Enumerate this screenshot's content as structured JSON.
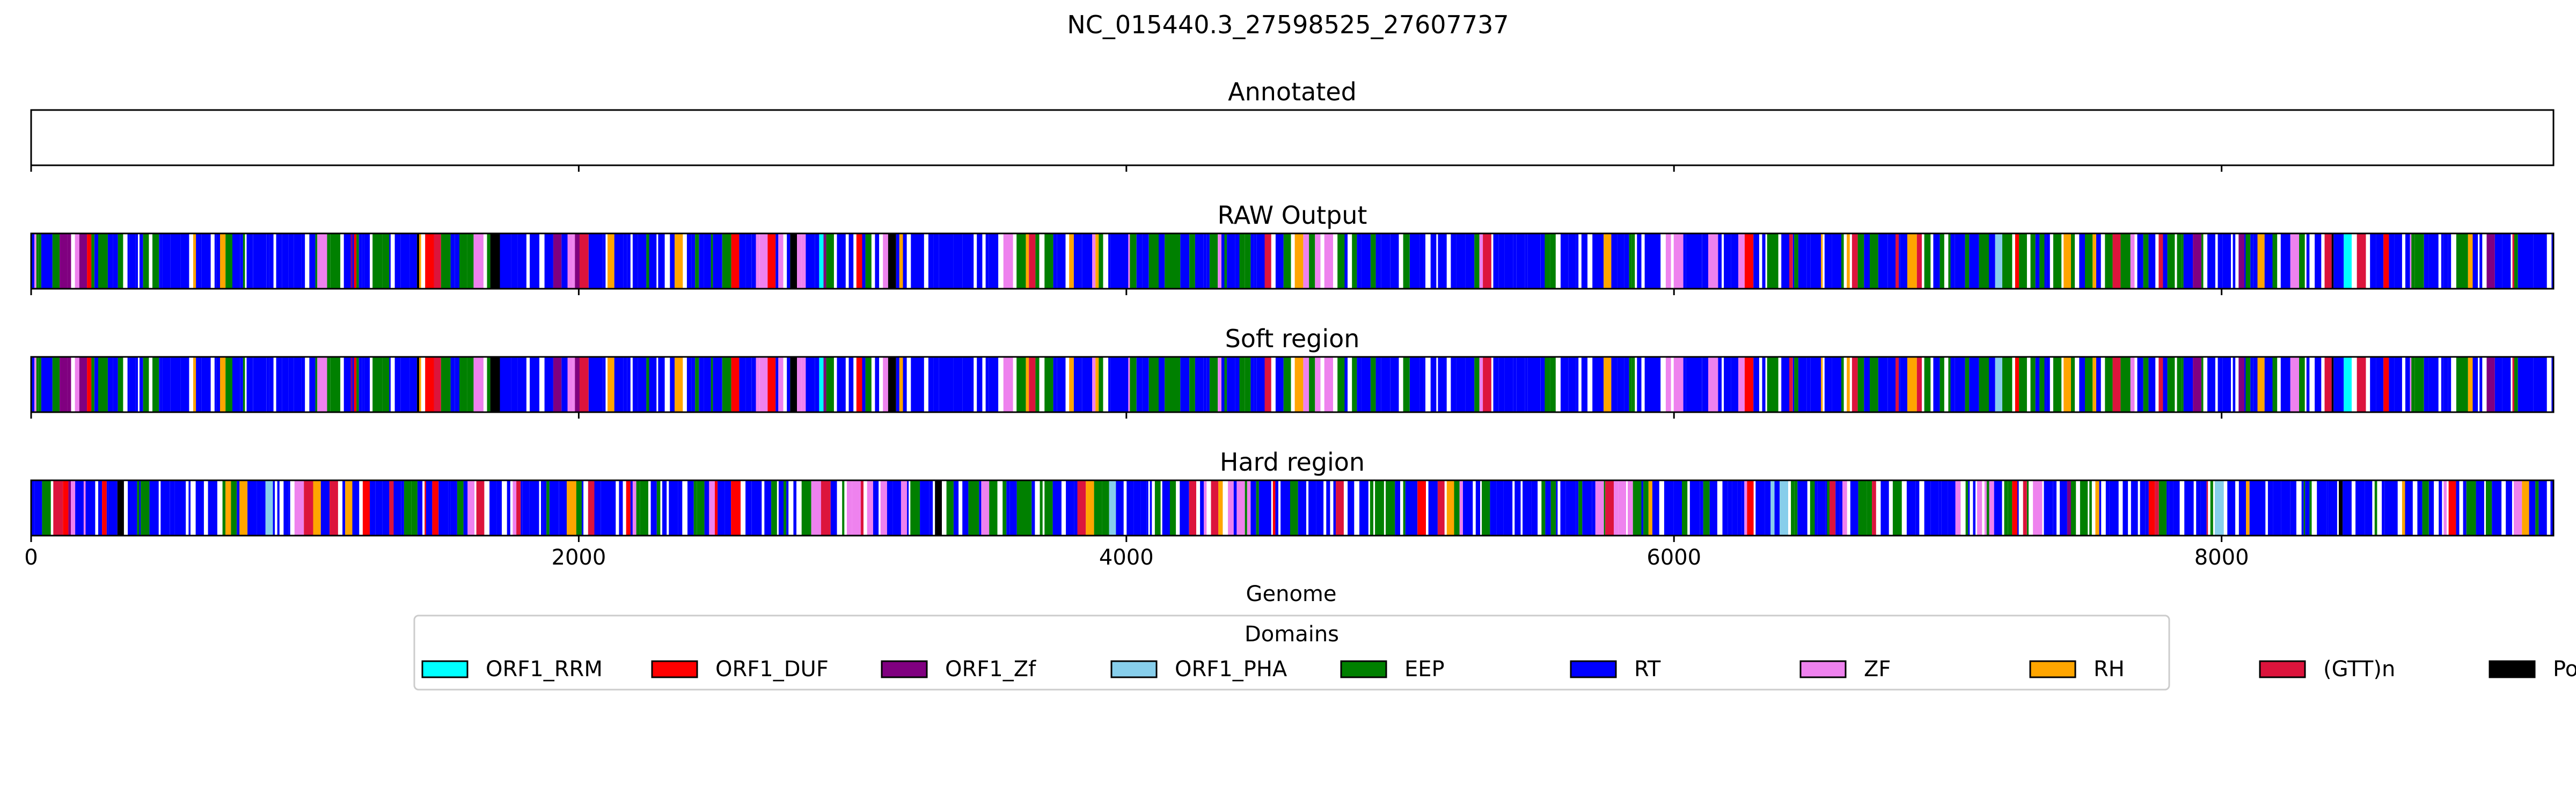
{
  "chart_data": {
    "type": "genome-track",
    "title": "NC_015440.3_27598525_27607737",
    "xlabel": "Genome",
    "xlim": [
      0,
      9212
    ],
    "xticks": [
      0,
      2000,
      4000,
      6000,
      8000
    ],
    "tracks": [
      {
        "id": "annotated",
        "title": "Annotated",
        "empty": true,
        "seed": 0
      },
      {
        "id": "raw",
        "title": "RAW Output",
        "empty": false,
        "seed": 11
      },
      {
        "id": "soft",
        "title": "Soft region",
        "empty": false,
        "seed": 11
      },
      {
        "id": "hard",
        "title": "Hard region",
        "empty": false,
        "seed": 29
      }
    ],
    "legend": {
      "title": "Domains",
      "placement": "bottom-center",
      "entries": [
        {
          "label": "ORF1_RRM",
          "color": "#00ffff"
        },
        {
          "label": "ORF1_DUF",
          "color": "#ff0000"
        },
        {
          "label": "ORF1_Zf",
          "color": "#800080"
        },
        {
          "label": "ORF1_PHA",
          "color": "#87ceeb"
        },
        {
          "label": "EEP",
          "color": "#008000"
        },
        {
          "label": "RT",
          "color": "#0000ff"
        },
        {
          "label": "ZF",
          "color": "#ee82ee"
        },
        {
          "label": "RH",
          "color": "#ffa500"
        },
        {
          "label": "(GTT)n",
          "color": "#dc143c"
        },
        {
          "label": "PoliA",
          "color": "#000000"
        }
      ]
    }
  }
}
